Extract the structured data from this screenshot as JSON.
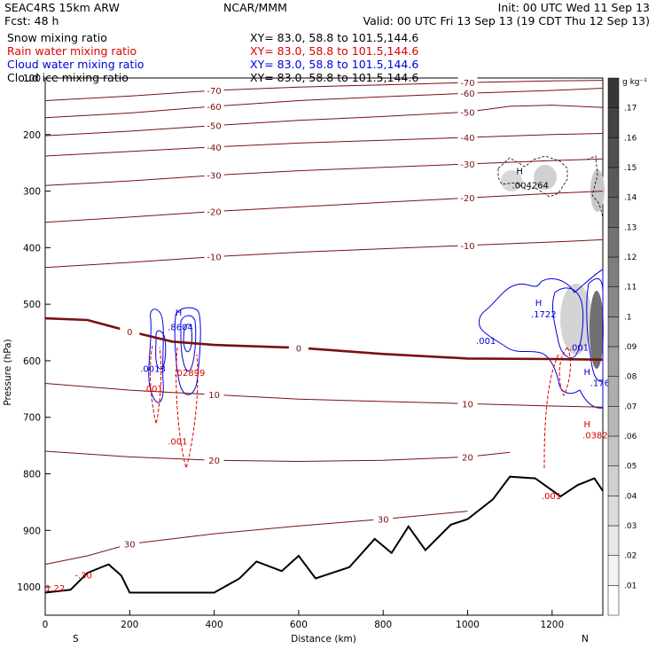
{
  "header": {
    "model": "SEAC4RS 15km ARW",
    "forecast": "Fcst:   48 h",
    "org": "NCAR/MMM",
    "init": "Init: 00 UTC Wed 11 Sep 13",
    "valid": "Valid: 00 UTC Fri 13 Sep 13 (19 CDT Thu 12 Sep 13)"
  },
  "fields": [
    {
      "name": "Snow mixing ratio",
      "xy": "XY=   83.0, 58.8 to 101.5,144.6",
      "color": "#000000"
    },
    {
      "name": "Rain water mixing ratio",
      "xy": "XY=   83.0, 58.8 to 101.5,144.6",
      "color": "#dd0000"
    },
    {
      "name": "Cloud water mixing ratio",
      "xy": "XY=   83.0, 58.8 to 101.5,144.6",
      "color": "#0000dd"
    },
    {
      "name": "Cloud ice mixing ratio",
      "xy": "XY=   83.0, 58.8 to 101.5,144.6",
      "color": "#000000"
    }
  ],
  "chart_data": {
    "type": "cross-section",
    "xlabel": "Distance (km)",
    "ylabel": "Pressure (hPa)",
    "xlim": [
      0,
      1320
    ],
    "ylim": [
      1050,
      100
    ],
    "xticks": [
      0,
      200,
      400,
      600,
      800,
      1000,
      1200
    ],
    "yticks": [
      100,
      200,
      300,
      400,
      500,
      600,
      700,
      800,
      900,
      1000
    ],
    "endpoint_labels": {
      "left": "S",
      "right": "N"
    },
    "colorbar": {
      "units": "g kg⁻¹",
      "levels": [
        ".01",
        ".02",
        ".03",
        ".04",
        ".05",
        ".06",
        ".07",
        ".08",
        ".09",
        ".1",
        ".11",
        ".12",
        ".13",
        ".14",
        ".15",
        ".16",
        ".17"
      ]
    },
    "temperature_isotherms": [
      {
        "label": "-70",
        "pts": [
          [
            0,
            140
          ],
          [
            200,
            132
          ],
          [
            400,
            122
          ],
          [
            600,
            116
          ],
          [
            800,
            112
          ],
          [
            1000,
            108
          ],
          [
            1200,
            105
          ],
          [
            1320,
            104
          ]
        ]
      },
      {
        "label": "-60",
        "pts": [
          [
            0,
            170
          ],
          [
            200,
            162
          ],
          [
            400,
            150
          ],
          [
            600,
            140
          ],
          [
            800,
            133
          ],
          [
            1000,
            127
          ],
          [
            1200,
            122
          ],
          [
            1320,
            118
          ]
        ]
      },
      {
        "label": "-50",
        "pts": [
          [
            0,
            202
          ],
          [
            200,
            194
          ],
          [
            400,
            184
          ],
          [
            600,
            175
          ],
          [
            800,
            168
          ],
          [
            1000,
            160
          ],
          [
            1100,
            150
          ],
          [
            1200,
            148
          ],
          [
            1320,
            152
          ]
        ]
      },
      {
        "label": "-40",
        "pts": [
          [
            0,
            238
          ],
          [
            200,
            230
          ],
          [
            400,
            222
          ],
          [
            600,
            215
          ],
          [
            800,
            210
          ],
          [
            1000,
            205
          ],
          [
            1200,
            200
          ],
          [
            1320,
            198
          ]
        ]
      },
      {
        "label": "-30",
        "pts": [
          [
            0,
            290
          ],
          [
            200,
            282
          ],
          [
            400,
            272
          ],
          [
            600,
            264
          ],
          [
            800,
            258
          ],
          [
            1000,
            252
          ],
          [
            1200,
            246
          ],
          [
            1320,
            243
          ]
        ]
      },
      {
        "label": "-20",
        "pts": [
          [
            0,
            355
          ],
          [
            200,
            346
          ],
          [
            400,
            336
          ],
          [
            600,
            328
          ],
          [
            800,
            320
          ],
          [
            1000,
            312
          ],
          [
            1200,
            304
          ],
          [
            1320,
            300
          ]
        ]
      },
      {
        "label": "-10",
        "pts": [
          [
            0,
            435
          ],
          [
            200,
            426
          ],
          [
            400,
            416
          ],
          [
            600,
            408
          ],
          [
            800,
            402
          ],
          [
            1000,
            396
          ],
          [
            1200,
            390
          ],
          [
            1320,
            386
          ]
        ]
      },
      {
        "label": "0",
        "pts": [
          [
            0,
            525
          ],
          [
            100,
            528
          ],
          [
            200,
            548
          ],
          [
            300,
            566
          ],
          [
            400,
            572
          ],
          [
            600,
            577
          ],
          [
            800,
            588
          ],
          [
            1000,
            596
          ],
          [
            1200,
            597
          ],
          [
            1320,
            598
          ]
        ],
        "heavy": true
      },
      {
        "label": "10",
        "pts": [
          [
            0,
            640
          ],
          [
            200,
            652
          ],
          [
            400,
            660
          ],
          [
            600,
            668
          ],
          [
            800,
            672
          ],
          [
            1000,
            676
          ],
          [
            1200,
            680
          ],
          [
            1320,
            682
          ]
        ]
      },
      {
        "label": "20",
        "pts": [
          [
            0,
            760
          ],
          [
            200,
            770
          ],
          [
            400,
            776
          ],
          [
            600,
            778
          ],
          [
            800,
            776
          ],
          [
            1000,
            770
          ],
          [
            1100,
            762
          ]
        ]
      },
      {
        "label": "30",
        "pts": [
          [
            0,
            960
          ],
          [
            100,
            945
          ],
          [
            200,
            924
          ],
          [
            400,
            906
          ],
          [
            600,
            892
          ],
          [
            800,
            880
          ],
          [
            1000,
            866
          ]
        ]
      }
    ],
    "terrain": [
      [
        0,
        1010
      ],
      [
        60,
        1005
      ],
      [
        100,
        975
      ],
      [
        150,
        960
      ],
      [
        180,
        980
      ],
      [
        200,
        1010
      ],
      [
        300,
        1010
      ],
      [
        400,
        1010
      ],
      [
        460,
        985
      ],
      [
        500,
        955
      ],
      [
        560,
        972
      ],
      [
        600,
        945
      ],
      [
        640,
        985
      ],
      [
        720,
        965
      ],
      [
        780,
        915
      ],
      [
        820,
        940
      ],
      [
        860,
        893
      ],
      [
        900,
        935
      ],
      [
        960,
        890
      ],
      [
        1000,
        880
      ],
      [
        1060,
        845
      ],
      [
        1100,
        805
      ],
      [
        1160,
        808
      ],
      [
        1220,
        840
      ],
      [
        1260,
        820
      ],
      [
        1300,
        808
      ],
      [
        1320,
        830
      ]
    ],
    "annotations": [
      {
        "text": "H",
        "x": 308,
        "y": 520,
        "color": "#0000dd"
      },
      {
        "text": ".8604",
        "x": 290,
        "y": 546,
        "color": "#0000dd"
      },
      {
        "text": ".0013",
        "x": 225,
        "y": 620,
        "color": "#0000dd"
      },
      {
        "text": ".02899",
        "x": 305,
        "y": 627,
        "color": "#dd0000"
      },
      {
        "text": ".001",
        "x": 232,
        "y": 655,
        "color": "#dd0000"
      },
      {
        "text": ".001",
        "x": 290,
        "y": 748,
        "color": "#dd0000"
      },
      {
        "text": "H",
        "x": 1115,
        "y": 270,
        "color": "#000000"
      },
      {
        "text": ".004264",
        "x": 1105,
        "y": 295,
        "color": "#000000"
      },
      {
        "text": "H",
        "x": 1160,
        "y": 503,
        "color": "#0000dd"
      },
      {
        "text": ".1722",
        "x": 1150,
        "y": 523,
        "color": "#0000dd"
      },
      {
        "text": ".001",
        "x": 1020,
        "y": 570,
        "color": "#0000dd"
      },
      {
        "text": ".001",
        "x": 1240,
        "y": 582,
        "color": "#0000dd"
      },
      {
        "text": "H",
        "x": 1275,
        "y": 625,
        "color": "#0000dd"
      },
      {
        "text": ".176",
        "x": 1290,
        "y": 645,
        "color": "#0000dd"
      },
      {
        "text": "H",
        "x": 1275,
        "y": 718,
        "color": "#dd0000"
      },
      {
        "text": ".0382",
        "x": 1272,
        "y": 737,
        "color": "#dd0000"
      },
      {
        "text": ".001",
        "x": 1175,
        "y": 845,
        "color": "#dd0000"
      },
      {
        "text": "1.22",
        "x": 0,
        "y": 1008,
        "color": "#dd0000"
      },
      {
        "text": "-.30",
        "x": 70,
        "y": 985,
        "color": "#dd0000"
      }
    ]
  }
}
